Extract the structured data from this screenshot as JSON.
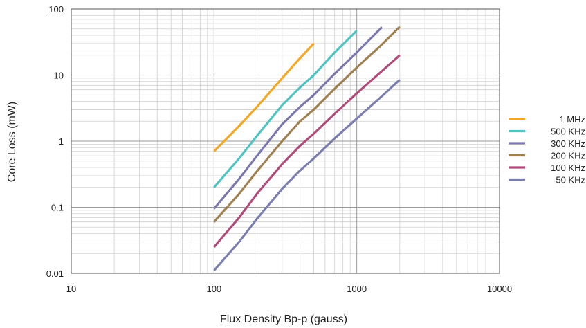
{
  "chart_data": {
    "type": "line",
    "xscale": "log",
    "yscale": "log",
    "xlim": [
      10,
      10000
    ],
    "ylim": [
      0.01,
      100
    ],
    "xlabel": "Flux Density Bp-p (gauss)",
    "ylabel": "Core Loss (mW)",
    "xticks": [
      {
        "value": 10,
        "label": "10"
      },
      {
        "value": 100,
        "label": "100"
      },
      {
        "value": 1000,
        "label": "1000"
      },
      {
        "value": 10000,
        "label": "10000"
      }
    ],
    "yticks": [
      {
        "value": 100,
        "label": "100"
      },
      {
        "value": 10,
        "label": "10"
      },
      {
        "value": 1,
        "label": "1"
      },
      {
        "value": 0.1,
        "label": "0.1"
      },
      {
        "value": 0.01,
        "label": "0.01"
      }
    ],
    "grid": true,
    "legend_position": "right",
    "series": [
      {
        "name": "1 MHz",
        "color": "#f5a623",
        "points": [
          [
            100,
            0.7
          ],
          [
            150,
            1.7
          ],
          [
            200,
            3.3
          ],
          [
            300,
            9
          ],
          [
            400,
            18
          ],
          [
            500,
            30
          ]
        ]
      },
      {
        "name": "500 KHz",
        "color": "#4ec3c3",
        "points": [
          [
            100,
            0.2
          ],
          [
            150,
            0.55
          ],
          [
            200,
            1.2
          ],
          [
            300,
            3.5
          ],
          [
            400,
            6.5
          ],
          [
            500,
            10
          ],
          [
            700,
            22
          ],
          [
            1000,
            47
          ]
        ]
      },
      {
        "name": "300 KHz",
        "color": "#7a77ad",
        "points": [
          [
            100,
            0.095
          ],
          [
            150,
            0.27
          ],
          [
            200,
            0.6
          ],
          [
            300,
            1.8
          ],
          [
            400,
            3.3
          ],
          [
            500,
            5
          ],
          [
            700,
            10.5
          ],
          [
            1000,
            22
          ],
          [
            1500,
            53
          ]
        ]
      },
      {
        "name": "200 KHz",
        "color": "#a08050",
        "points": [
          [
            100,
            0.06
          ],
          [
            150,
            0.16
          ],
          [
            200,
            0.35
          ],
          [
            300,
            1.0
          ],
          [
            400,
            2.0
          ],
          [
            500,
            3.0
          ],
          [
            700,
            6.2
          ],
          [
            1000,
            13
          ],
          [
            1500,
            29
          ],
          [
            2000,
            54
          ]
        ]
      },
      {
        "name": "100 KHz",
        "color": "#b04a7a",
        "points": [
          [
            100,
            0.025
          ],
          [
            150,
            0.07
          ],
          [
            200,
            0.16
          ],
          [
            300,
            0.45
          ],
          [
            400,
            0.85
          ],
          [
            500,
            1.3
          ],
          [
            700,
            2.6
          ],
          [
            1000,
            5.3
          ],
          [
            1500,
            11.5
          ],
          [
            2000,
            20
          ]
        ]
      },
      {
        "name": "50 KHz",
        "color": "#7a7fb0",
        "points": [
          [
            100,
            0.011
          ],
          [
            150,
            0.03
          ],
          [
            200,
            0.067
          ],
          [
            300,
            0.19
          ],
          [
            400,
            0.36
          ],
          [
            500,
            0.55
          ],
          [
            700,
            1.1
          ],
          [
            1000,
            2.2
          ],
          [
            1500,
            4.8
          ],
          [
            2000,
            8.5
          ]
        ]
      }
    ]
  }
}
